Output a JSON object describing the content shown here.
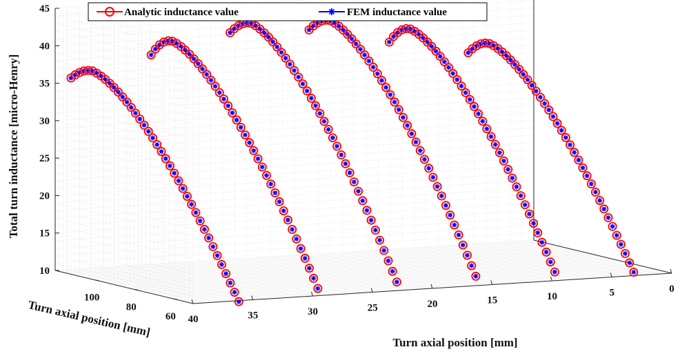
{
  "chart_data": {
    "type": "scatter",
    "title": "",
    "zlabel": "Total turn inductance  [micro-Henry]",
    "xlabel": "Turn axial position [mm]",
    "ylabel": "Turn axial position [mm]",
    "x_ticks": [
      "40",
      "35",
      "30",
      "25",
      "20",
      "15",
      "10",
      "5",
      "0"
    ],
    "y_ticks": [
      "60",
      "80",
      "100"
    ],
    "z_ticks": [
      "10",
      "15",
      "20",
      "25",
      "30",
      "35",
      "40",
      "45"
    ],
    "xlim": [
      0,
      40
    ],
    "ylim": [
      50,
      120
    ],
    "zlim": [
      10,
      45
    ],
    "grid": true,
    "legend_position": "top",
    "legend": [
      {
        "label": "Analytic inductance value",
        "color": "#ff0000",
        "marker": "circle"
      },
      {
        "label": "FEM inductance value",
        "color": "#0000ff",
        "marker": "asterisk"
      }
    ],
    "series": [
      {
        "name": "Analytic inductance value",
        "points_per_group": 40
      },
      {
        "name": "FEM inductance value",
        "points_per_group": 40
      }
    ],
    "groups": [
      {
        "x_start": 40,
        "x_end": 34.2,
        "y_start": 112,
        "y_end": 62,
        "z_start": 36.2,
        "z_peak": 37.5,
        "z_end": 8.9
      },
      {
        "x_start": 33.3,
        "x_end": 27.6,
        "y_start": 112,
        "y_end": 62,
        "z_start": 38.6,
        "z_peak": 40.8,
        "z_end": 10.0
      },
      {
        "x_start": 26.7,
        "x_end": 21.0,
        "y_start": 112,
        "y_end": 62,
        "z_start": 40.9,
        "z_peak": 42.5,
        "z_end": 10.2
      },
      {
        "x_start": 20.1,
        "x_end": 14.4,
        "y_start": 112,
        "y_end": 62,
        "z_start": 40.6,
        "z_peak": 42.2,
        "z_end": 10.3
      },
      {
        "x_start": 13.4,
        "x_end": 7.8,
        "y_start": 112,
        "y_end": 62,
        "z_start": 38.3,
        "z_peak": 40.4,
        "z_end": 10.2
      },
      {
        "x_start": 6.8,
        "x_end": 1.2,
        "y_start": 112,
        "y_end": 62,
        "z_start": 36.2,
        "z_peak": 37.8,
        "z_end": 9.5
      }
    ]
  }
}
